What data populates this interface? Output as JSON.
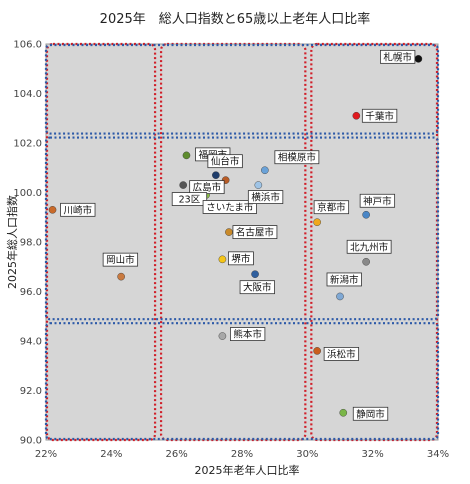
{
  "chart_data": {
    "type": "scatter",
    "title": "2025年　総人口指数と65歳以上老年人口比率",
    "xlabel": "2025年老年人口比率",
    "ylabel": "2025年総人口指数",
    "xlim": [
      0.22,
      0.34
    ],
    "ylim": [
      90.0,
      106.0
    ],
    "xticks": [
      0.22,
      0.24,
      0.26,
      0.28,
      0.3,
      0.32,
      0.34
    ],
    "xtick_labels": [
      "22%",
      "24%",
      "26%",
      "28%",
      "30%",
      "32%",
      "34%"
    ],
    "yticks": [
      90,
      92,
      94,
      96,
      98,
      100,
      102,
      104,
      106
    ],
    "ytick_labels": [
      "90.0",
      "92.0",
      "94.0",
      "96.0",
      "98.0",
      "100.0",
      "102.0",
      "104.0",
      "106.0"
    ],
    "grid": false,
    "region_dividers": {
      "x": [
        0.254,
        0.3
      ],
      "y": [
        94.8,
        102.3
      ]
    },
    "points": [
      {
        "name": "札幌市",
        "x": 0.334,
        "y": 105.4,
        "color": "#111111"
      },
      {
        "name": "千葉市",
        "x": 0.315,
        "y": 103.1,
        "color": "#e0191e"
      },
      {
        "name": "福岡市",
        "x": 0.263,
        "y": 101.5,
        "color": "#5e8c2e"
      },
      {
        "name": "仙台市",
        "x": 0.272,
        "y": 100.7,
        "color": "#1f3d6b"
      },
      {
        "name": "相模原市",
        "x": 0.287,
        "y": 100.9,
        "color": "#6aa2d8"
      },
      {
        "name": "広島市",
        "x": 0.275,
        "y": 100.5,
        "color": "#b85c26"
      },
      {
        "name": "23区",
        "x": 0.262,
        "y": 100.3,
        "color": "#555555"
      },
      {
        "name": "さいたま市",
        "x": 0.269,
        "y": 99.9,
        "color": "#8cbf4a"
      },
      {
        "name": "横浜市",
        "x": 0.285,
        "y": 100.3,
        "color": "#9fc4e6"
      },
      {
        "name": "川崎市",
        "x": 0.222,
        "y": 99.3,
        "color": "#c96a2a"
      },
      {
        "name": "京都市",
        "x": 0.303,
        "y": 98.8,
        "color": "#f0a81c"
      },
      {
        "name": "神戸市",
        "x": 0.318,
        "y": 99.1,
        "color": "#4a86c6"
      },
      {
        "name": "名古屋市",
        "x": 0.276,
        "y": 98.4,
        "color": "#c98a2a"
      },
      {
        "name": "北九州市",
        "x": 0.318,
        "y": 97.2,
        "color": "#888888"
      },
      {
        "name": "岡山市",
        "x": 0.243,
        "y": 96.6,
        "color": "#c97a40"
      },
      {
        "name": "堺市",
        "x": 0.274,
        "y": 97.3,
        "color": "#f5c518"
      },
      {
        "name": "大阪市",
        "x": 0.284,
        "y": 96.7,
        "color": "#2f5f9e"
      },
      {
        "name": "新潟市",
        "x": 0.31,
        "y": 95.8,
        "color": "#7fa8d4"
      },
      {
        "name": "熊本市",
        "x": 0.274,
        "y": 94.2,
        "color": "#a8a8a8"
      },
      {
        "name": "浜松市",
        "x": 0.303,
        "y": 93.6,
        "color": "#c95e1e"
      },
      {
        "name": "静岡市",
        "x": 0.311,
        "y": 91.1,
        "color": "#7ab648"
      }
    ]
  }
}
